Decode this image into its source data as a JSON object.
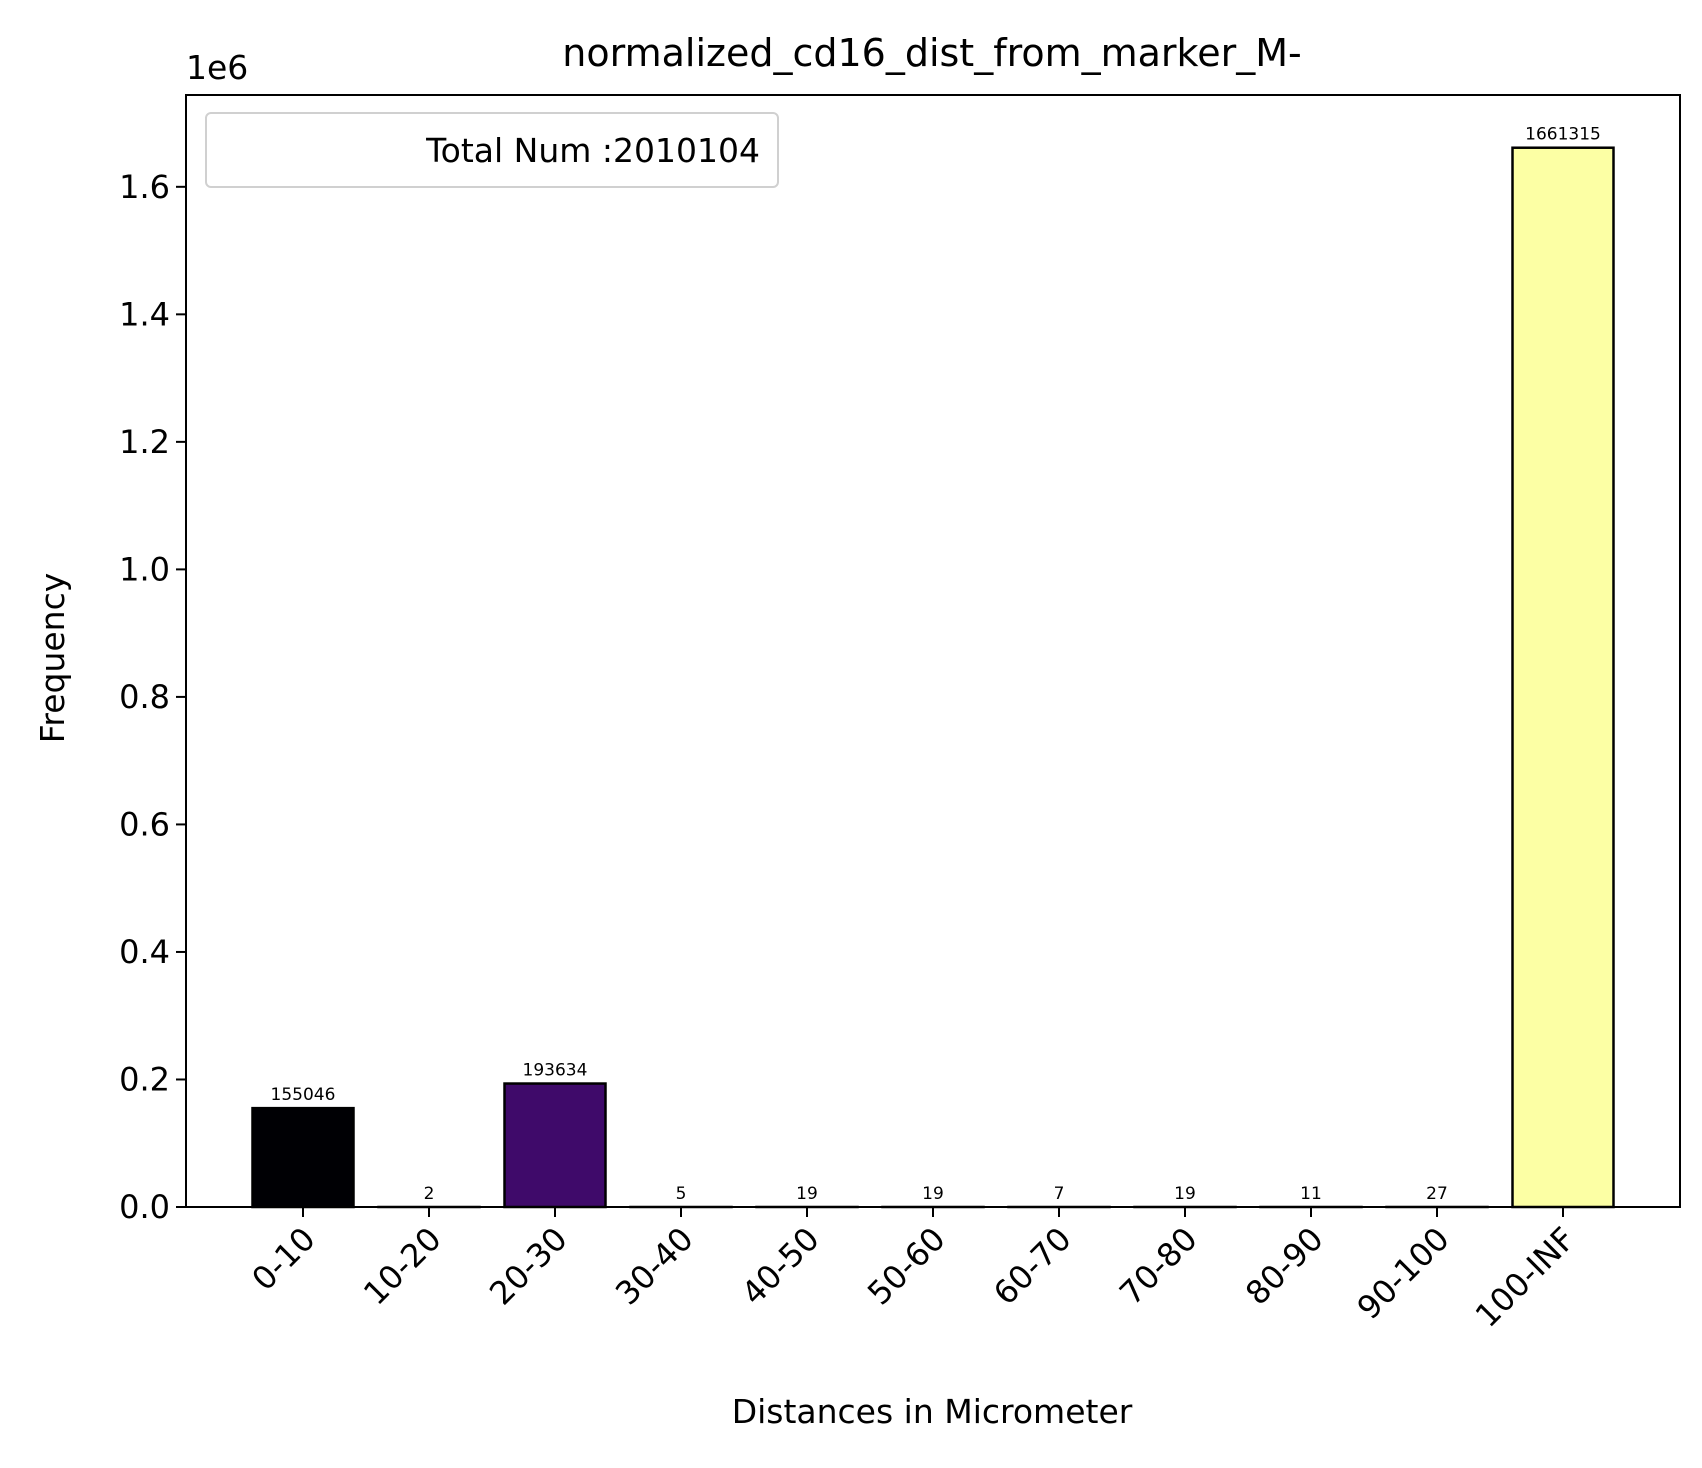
{
  "chart_data": {
    "type": "bar",
    "title": "normalized_cd16_dist_from_marker_M-",
    "xlabel": "Distances in Micrometer",
    "ylabel": "Frequency",
    "y_offset_label": "1e6",
    "y_scale_factor": 1000000,
    "ylim": [
      0,
      1.744
    ],
    "yticks": [
      0.0,
      0.2,
      0.4,
      0.6,
      0.8,
      1.0,
      1.2,
      1.4,
      1.6
    ],
    "ytick_labels": [
      "0.0",
      "0.2",
      "0.4",
      "0.6",
      "0.8",
      "1.0",
      "1.2",
      "1.4",
      "1.6"
    ],
    "categories": [
      "0-10",
      "10-20",
      "20-30",
      "30-40",
      "40-50",
      "50-60",
      "60-70",
      "70-80",
      "80-90",
      "90-100",
      "100-INF"
    ],
    "values": [
      155046,
      2,
      193634,
      5,
      19,
      19,
      7,
      19,
      11,
      27,
      1661315
    ],
    "value_labels": [
      "155046",
      "2",
      "193634",
      "5",
      "19",
      "19",
      "7",
      "19",
      "11",
      "27",
      "1661315"
    ],
    "bar_colors": [
      "#000004",
      "#0d0829",
      "#3f0a6a",
      "#6a176e",
      "#932667",
      "#bc3754",
      "#dd513a",
      "#f3771a",
      "#fca50a",
      "#f6d645",
      "#fcffa4"
    ],
    "legend": {
      "text": "Total Num :2010104",
      "location": "upper left"
    },
    "grid": false
  }
}
